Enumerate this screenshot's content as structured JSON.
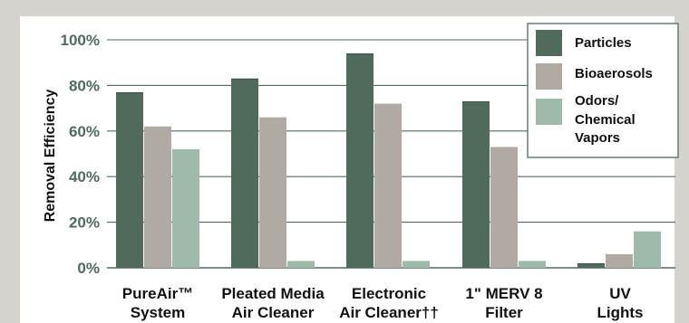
{
  "chart_data": {
    "type": "bar",
    "ylabel": "Removal Efficiency",
    "ylim": [
      0,
      100
    ],
    "yticks": [
      "0%",
      "20%",
      "40%",
      "60%",
      "80%",
      "100%"
    ],
    "categories": [
      [
        "PureAir™",
        "System"
      ],
      [
        "Pleated Media",
        "Air Cleaner"
      ],
      [
        "Electronic",
        "Air Cleaner††"
      ],
      [
        "1\" MERV 8",
        "Filter"
      ],
      [
        "UV",
        "Lights"
      ]
    ],
    "series": [
      {
        "name": [
          "Particles"
        ],
        "color": "#4e6b5c",
        "values": [
          77,
          83,
          94,
          73,
          2
        ]
      },
      {
        "name": [
          "Bioaerosols"
        ],
        "color": "#b1aaa2",
        "values": [
          62,
          66,
          72,
          53,
          6
        ]
      },
      {
        "name": [
          "Odors/",
          "Chemical",
          "Vapors"
        ],
        "color": "#9cb9a9",
        "values": [
          52,
          3,
          3,
          3,
          16
        ]
      }
    ],
    "grid": true,
    "legend_position": "top-right"
  }
}
